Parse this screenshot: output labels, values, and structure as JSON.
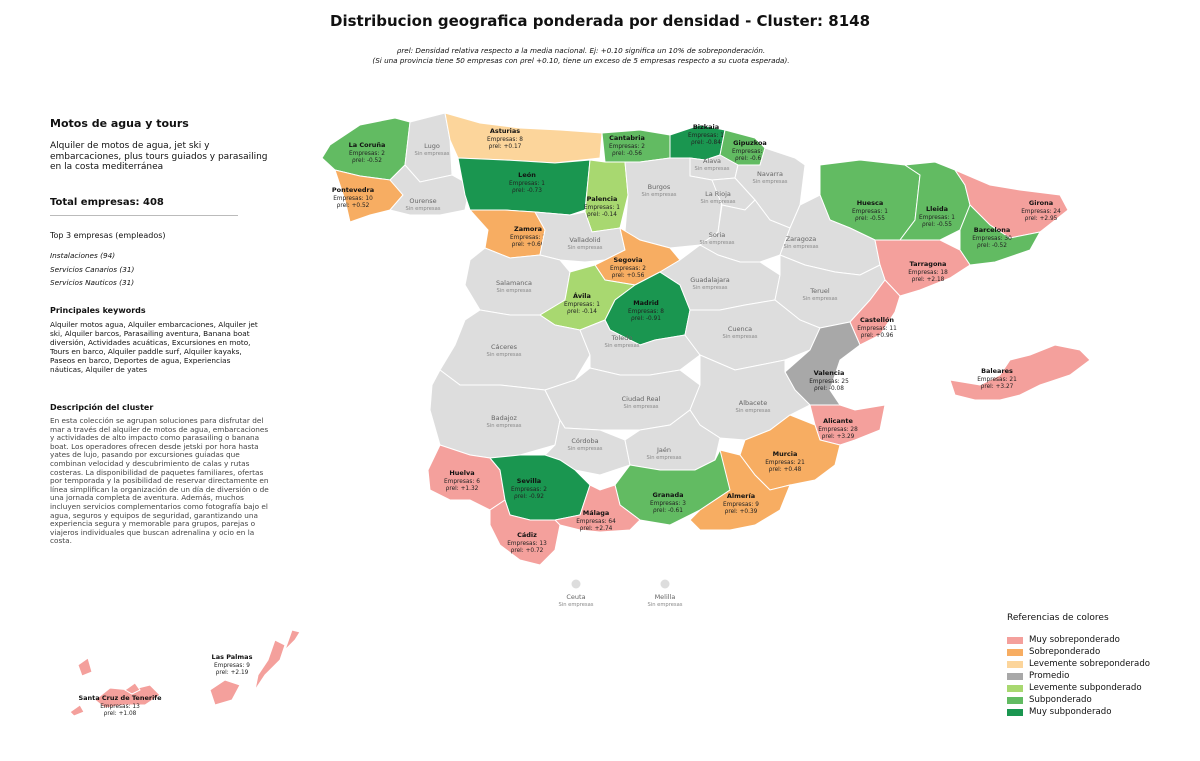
{
  "header": {
    "title": "Distribucion geografica ponderada por densidad - Cluster: 8148",
    "note1": "ρrel: Densidad relativa respecto a la media nacional. Ej: +0.10 significa un 10% de sobreponderación.",
    "note2": "(Si una provincia tiene 50 empresas con ρrel +0.10, tiene un exceso de 5 empresas respecto a su cuota esperada)."
  },
  "sidebar": {
    "cluster_name": "Motos de agua y tours",
    "cluster_summary": "Alquiler de motos de agua, jet ski y embarcaciones, plus tours guiados y parasailing en la costa mediterránea",
    "total": "Total empresas: 408",
    "top_label": "Top 3 empresas (empleados)",
    "top": [
      "Instalaciones (94)",
      "Servicios Canarios (31)",
      "Servicios Nauticos (31)"
    ],
    "keywords_label": "Principales keywords",
    "keywords": "Alquiler motos agua, Alquiler embarcaciones, Alquiler jet ski, Alquiler barcos, Parasailing aventura, Banana boat diversión, Actividades acuáticas, Excursiones en moto, Tours en barco, Alquiler paddle surf, Alquiler kayaks, Paseos en barco, Deportes de agua, Experiencias náuticas, Alquiler de yates",
    "desc_label": "Descripción del cluster",
    "description": "En esta colección se agrupan soluciones para disfrutar del mar a través del alquiler de motos de agua, embarcaciones y actividades de alto impacto como parasailing o banana boat. Los operadores ofrecen desde jetski por hora hasta yates de lujo, pasando por excursiones guiadas que combinan velocidad y descubrimiento de calas y rutas costeras. La disponibilidad de paquetes familiares, ofertas por temporada y la posibilidad de reservar directamente en línea simplifican la organización de un día de diversión o de una jornada completa de aventura. Además, muchos incluyen servicios complementarios como fotografía bajo el agua, seguros y equipos de seguridad, garantizando una experiencia segura y memorable para grupos, parejas o viajeros individuales que buscan adrenalina y ocio en la costa."
  },
  "colors": {
    "muy_sobre": "#f4a09c",
    "sobre": "#f7ad62",
    "lev_sobre": "#fcd59b",
    "promedio": "#a8a8a8",
    "lev_sub": "#a8d870",
    "sub": "#62bb62",
    "muy_sub": "#1a9650",
    "none": "#dddddd"
  },
  "legend": {
    "title": "Referencias de colores",
    "items": [
      {
        "label": "Muy sobreponderado",
        "cls": "muy_sobre"
      },
      {
        "label": "Sobreponderado",
        "cls": "sobre"
      },
      {
        "label": "Levemente sobreponderado",
        "cls": "lev_sobre"
      },
      {
        "label": "Promedio",
        "cls": "promedio"
      },
      {
        "label": "Levemente subponderado",
        "cls": "lev_sub"
      },
      {
        "label": "Subponderado",
        "cls": "sub"
      },
      {
        "label": "Muy subponderado",
        "cls": "muy_sub"
      }
    ]
  },
  "no_companies_text": "Sin empresas",
  "companies_prefix": "Empresas: ",
  "rho_prefix": "ρrel: ",
  "provinces": [
    {
      "name": "La Coruña",
      "cls": "sub",
      "count": 2,
      "rho": "-0.52"
    },
    {
      "name": "Lugo",
      "cls": "none"
    },
    {
      "name": "Asturias",
      "cls": "lev_sobre",
      "count": 8,
      "rho": "+0.17"
    },
    {
      "name": "Cantabria",
      "cls": "sub",
      "count": 2,
      "rho": "-0.56"
    },
    {
      "name": "Bizkaia",
      "cls": "muy_sub",
      "count": 1,
      "rho": "-0.84"
    },
    {
      "name": "Gipuzkoa",
      "cls": "sub",
      "count": 2,
      "rho": "-0.64"
    },
    {
      "name": "Álava",
      "cls": "none"
    },
    {
      "name": "Navarra",
      "cls": "none"
    },
    {
      "name": "Pontevedra",
      "cls": "sobre",
      "count": 10,
      "rho": "+0.52"
    },
    {
      "name": "Ourense",
      "cls": "none"
    },
    {
      "name": "León",
      "cls": "muy_sub",
      "count": 1,
      "rho": "-0.73"
    },
    {
      "name": "Palencia",
      "cls": "lev_sub",
      "count": 1,
      "rho": "-0.14"
    },
    {
      "name": "Burgos",
      "cls": "none"
    },
    {
      "name": "La Rioja",
      "cls": "none"
    },
    {
      "name": "Huesca",
      "cls": "sub",
      "count": 1,
      "rho": "-0.55"
    },
    {
      "name": "Lleida",
      "cls": "sub",
      "count": 1,
      "rho": "-0.55"
    },
    {
      "name": "Girona",
      "cls": "muy_sobre",
      "count": 24,
      "rho": "+2.95"
    },
    {
      "name": "Barcelona",
      "cls": "sub",
      "count": 30,
      "rho": "-0.52"
    },
    {
      "name": "Zamora",
      "cls": "sobre",
      "count": 2,
      "rho": "+0.66"
    },
    {
      "name": "Valladolid",
      "cls": "none"
    },
    {
      "name": "Soria",
      "cls": "none"
    },
    {
      "name": "Zaragoza",
      "cls": "none"
    },
    {
      "name": "Tarragona",
      "cls": "muy_sobre",
      "count": 18,
      "rho": "+2.18"
    },
    {
      "name": "Segovia",
      "cls": "sobre",
      "count": 2,
      "rho": "+0.56"
    },
    {
      "name": "Salamanca",
      "cls": "none"
    },
    {
      "name": "Ávila",
      "cls": "lev_sub",
      "count": 1,
      "rho": "-0.14"
    },
    {
      "name": "Madrid",
      "cls": "muy_sub",
      "count": 8,
      "rho": "-0.91"
    },
    {
      "name": "Guadalajara",
      "cls": "none"
    },
    {
      "name": "Teruel",
      "cls": "none"
    },
    {
      "name": "Castellón",
      "cls": "muy_sobre",
      "count": 11,
      "rho": "+0.96"
    },
    {
      "name": "Cáceres",
      "cls": "none"
    },
    {
      "name": "Toledo",
      "cls": "none"
    },
    {
      "name": "Cuenca",
      "cls": "none"
    },
    {
      "name": "Valencia",
      "cls": "promedio",
      "count": 25,
      "rho": "-0.08"
    },
    {
      "name": "Baleares",
      "cls": "muy_sobre",
      "count": 21,
      "rho": "+3.27"
    },
    {
      "name": "Badajoz",
      "cls": "none"
    },
    {
      "name": "Ciudad Real",
      "cls": "none"
    },
    {
      "name": "Albacete",
      "cls": "none"
    },
    {
      "name": "Alicante",
      "cls": "muy_sobre",
      "count": 28,
      "rho": "+3.29"
    },
    {
      "name": "Córdoba",
      "cls": "none"
    },
    {
      "name": "Jaén",
      "cls": "none"
    },
    {
      "name": "Murcia",
      "cls": "sobre",
      "count": 21,
      "rho": "+0.48"
    },
    {
      "name": "Huelva",
      "cls": "muy_sobre",
      "count": 6,
      "rho": "+1.32"
    },
    {
      "name": "Sevilla",
      "cls": "muy_sub",
      "count": 2,
      "rho": "-0.92"
    },
    {
      "name": "Granada",
      "cls": "sub",
      "count": 3,
      "rho": "-0.61"
    },
    {
      "name": "Almería",
      "cls": "sobre",
      "count": 9,
      "rho": "+0.39"
    },
    {
      "name": "Málaga",
      "cls": "muy_sobre",
      "count": 64,
      "rho": "+2.74"
    },
    {
      "name": "Cádiz",
      "cls": "muy_sobre",
      "count": 13,
      "rho": "+0.72"
    },
    {
      "name": "Ceuta",
      "cls": "none"
    },
    {
      "name": "Melilla",
      "cls": "none"
    },
    {
      "name": "Las Palmas",
      "cls": "muy_sobre",
      "count": 9,
      "rho": "+2.19"
    },
    {
      "name": "Santa Cruz de Tenerife",
      "cls": "muy_sobre",
      "count": 13,
      "rho": "+1.08"
    }
  ]
}
